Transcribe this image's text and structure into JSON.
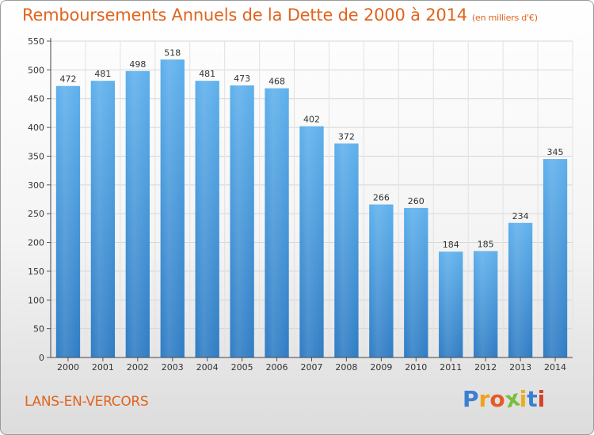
{
  "chart_data": {
    "type": "bar",
    "title": "Remboursements Annuels de la Dette de 2000 à 2014",
    "unit": "(en milliers d'€)",
    "categories": [
      "2000",
      "2001",
      "2002",
      "2003",
      "2004",
      "2005",
      "2006",
      "2007",
      "2008",
      "2009",
      "2010",
      "2011",
      "2012",
      "2013",
      "2014"
    ],
    "values": [
      472,
      481,
      498,
      518,
      481,
      473,
      468,
      402,
      372,
      266,
      260,
      184,
      185,
      234,
      345
    ],
    "yticks": [
      0,
      50,
      100,
      150,
      200,
      250,
      300,
      350,
      400,
      450,
      500,
      550
    ],
    "ylim": [
      0,
      550
    ],
    "xlabel": "",
    "ylabel": "",
    "grid": true,
    "bar_color": "#3d8fd6"
  },
  "footer": {
    "town": "LANS-EN-VERCORS",
    "logo_letters": [
      "P",
      "r",
      "o",
      "x",
      "i",
      "t",
      "i"
    ],
    "logo_colors": [
      "#3a7fd0",
      "#f0a020",
      "#e65a28",
      "#7abf3a",
      "#e8b020",
      "#3a7fd0",
      "#d4402a"
    ]
  }
}
